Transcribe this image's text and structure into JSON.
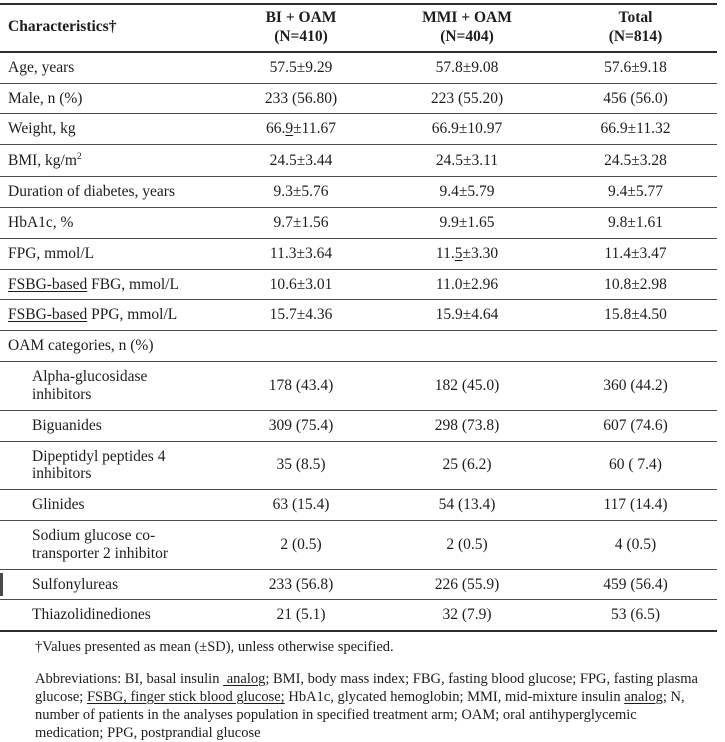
{
  "table": {
    "header": {
      "characteristics": "Characteristics†",
      "groups": [
        {
          "name": "BI + OAM",
          "n": "(N=410)"
        },
        {
          "name": "MMI + OAM",
          "n": "(N=404)"
        },
        {
          "name": "Total",
          "n": "(N=814)"
        }
      ]
    },
    "rows": [
      {
        "label": [
          {
            "t": "Age, years"
          }
        ],
        "values": [
          [
            {
              "t": "57.5±9.29"
            }
          ],
          [
            {
              "t": "57.8±9.08"
            }
          ],
          [
            {
              "t": "57.6±9.18"
            }
          ]
        ]
      },
      {
        "label": [
          {
            "t": "Male, n (%)"
          }
        ],
        "values": [
          [
            {
              "t": "233 (56.80)"
            }
          ],
          [
            {
              "t": "223 (55.20)"
            }
          ],
          [
            {
              "t": "456 (56.0)"
            }
          ]
        ]
      },
      {
        "label": [
          {
            "t": "Weight, kg"
          }
        ],
        "values": [
          [
            {
              "t": "66."
            },
            {
              "t": "9",
              "u": true
            },
            {
              "t": "±11.67"
            }
          ],
          [
            {
              "t": "66.9±10.97"
            }
          ],
          [
            {
              "t": "66.9±11.32"
            }
          ]
        ]
      },
      {
        "label": [
          {
            "t": "BMI, kg/m"
          },
          {
            "t": "2",
            "sup": true
          }
        ],
        "values": [
          [
            {
              "t": "24.5±3.44"
            }
          ],
          [
            {
              "t": "24.5±3.11"
            }
          ],
          [
            {
              "t": "24.5±3.28"
            }
          ]
        ]
      },
      {
        "label": [
          {
            "t": "Duration of diabetes, years"
          }
        ],
        "values": [
          [
            {
              "t": "9.3±5.76"
            }
          ],
          [
            {
              "t": "9.4±5.79"
            }
          ],
          [
            {
              "t": "9.4±5.77"
            }
          ]
        ]
      },
      {
        "label": [
          {
            "t": "HbA1c, %"
          }
        ],
        "values": [
          [
            {
              "t": "9.7±1.56"
            }
          ],
          [
            {
              "t": "9.9±1.65"
            }
          ],
          [
            {
              "t": "9.8±1.61"
            }
          ]
        ]
      },
      {
        "label": [
          {
            "t": "FPG, mmol/L"
          }
        ],
        "values": [
          [
            {
              "t": "11.3±3.64"
            }
          ],
          [
            {
              "t": "11."
            },
            {
              "t": "5",
              "u": true
            },
            {
              "t": "±3.30"
            }
          ],
          [
            {
              "t": "11.4±3.47"
            }
          ]
        ]
      },
      {
        "label": [
          {
            "t": "FSBG-based",
            "u": true
          },
          {
            "t": " FBG, mmol/L"
          }
        ],
        "values": [
          [
            {
              "t": "10.6±3.01"
            }
          ],
          [
            {
              "t": "11.0±2.96"
            }
          ],
          [
            {
              "t": "10.8±2.98"
            }
          ]
        ]
      },
      {
        "label": [
          {
            "t": "FSBG-based",
            "u": true
          },
          {
            "t": " PPG, mmol/L"
          }
        ],
        "values": [
          [
            {
              "t": "15.7±4.36"
            }
          ],
          [
            {
              "t": "15.9±4.64"
            }
          ],
          [
            {
              "t": "15.8±4.50"
            }
          ]
        ]
      },
      {
        "label": [
          {
            "t": "OAM categories, n (%)"
          }
        ],
        "section": true,
        "values": [
          [],
          [],
          []
        ]
      },
      {
        "label": [
          {
            "t": "Alpha-glucosidase\ninhibitors"
          }
        ],
        "indent": true,
        "values": [
          [
            {
              "t": "178 (43.4)"
            }
          ],
          [
            {
              "t": "182 (45.0)"
            }
          ],
          [
            {
              "t": "360 (44.2)"
            }
          ]
        ]
      },
      {
        "label": [
          {
            "t": "Biguanides"
          }
        ],
        "indent": true,
        "values": [
          [
            {
              "t": "309 (75.4)"
            }
          ],
          [
            {
              "t": "298 (73.8)"
            }
          ],
          [
            {
              "t": "607 (74.6)"
            }
          ]
        ]
      },
      {
        "label": [
          {
            "t": "Dipeptidyl peptides 4\ninhibitors"
          }
        ],
        "indent": true,
        "values": [
          [
            {
              "t": "35 (8.5)"
            }
          ],
          [
            {
              "t": "25 (6.2)"
            }
          ],
          [
            {
              "t": "60 ( 7.4)"
            }
          ]
        ]
      },
      {
        "label": [
          {
            "t": "Glinides"
          }
        ],
        "indent": true,
        "values": [
          [
            {
              "t": "63 (15.4)"
            }
          ],
          [
            {
              "t": "54 (13.4)"
            }
          ],
          [
            {
              "t": "117 (14.4)"
            }
          ]
        ]
      },
      {
        "label": [
          {
            "t": "Sodium glucose co-\ntransporter 2 inhibitor"
          }
        ],
        "indent": true,
        "values": [
          [
            {
              "t": "2 (0.5)"
            }
          ],
          [
            {
              "t": "2 (0.5)"
            }
          ],
          [
            {
              "t": "4 (0.5)"
            }
          ]
        ]
      },
      {
        "label": [
          {
            "t": "Sulfonylureas"
          }
        ],
        "indent": true,
        "changebar": true,
        "values": [
          [
            {
              "t": "233 (56.8)"
            }
          ],
          [
            {
              "t": "226 (55.9)"
            }
          ],
          [
            {
              "t": "459 (56.4)"
            }
          ]
        ]
      },
      {
        "label": [
          {
            "t": "Thiazolidinediones"
          }
        ],
        "indent": true,
        "values": [
          [
            {
              "t": "21 (5.1)"
            }
          ],
          [
            {
              "t": "32 (7.9)"
            }
          ],
          [
            {
              "t": "53 (6.5)"
            }
          ]
        ]
      }
    ]
  },
  "footnotes": {
    "dagger": "†Values presented as mean (±SD), unless otherwise specified.",
    "abbreviations": [
      {
        "t": "Abbreviations: BI, basal insulin "
      },
      {
        "t": " analog",
        "u": true
      },
      {
        "t": "; BMI, body mass index; FBG, fasting blood glucose; FPG, fasting plasma glucose; "
      },
      {
        "t": "FSBG, finger stick blood glucose;",
        "u": true
      },
      {
        "t": " HbA1c, glycated hemoglobin; MMI, mid-mixture insulin "
      },
      {
        "t": "analog",
        "u": true
      },
      {
        "t": "; N, number of patients in the analyses population in specified treatment arm; OAM; oral antihyperglycemic medication; PPG, postprandial glucose"
      }
    ]
  }
}
